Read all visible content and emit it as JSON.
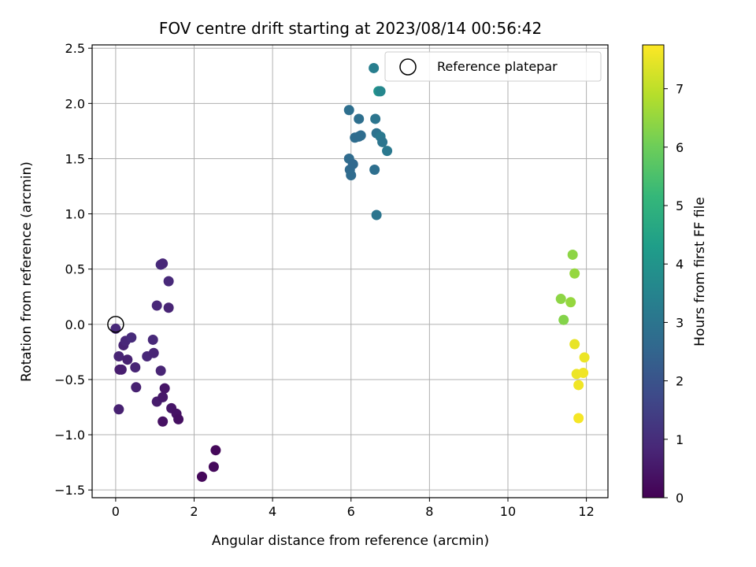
{
  "chart_data": {
    "type": "scatter",
    "title": "FOV centre drift starting at 2023/08/14 00:56:42",
    "xlabel": "Angular distance from reference (arcmin)",
    "ylabel": "Rotation from reference (arcmin)",
    "xlim": [
      -0.6,
      12.55
    ],
    "ylim": [
      -1.57,
      2.53
    ],
    "xticks": [
      0,
      2,
      4,
      6,
      8,
      10,
      12
    ],
    "xtick_labels": [
      "0",
      "2",
      "4",
      "6",
      "8",
      "10",
      "12"
    ],
    "yticks": [
      -1.5,
      -1.0,
      -0.5,
      0.0,
      0.5,
      1.0,
      1.5,
      2.0,
      2.5
    ],
    "ytick_labels": [
      "−1.5",
      "−1.0",
      "−0.5",
      "0.0",
      "0.5",
      "1.0",
      "1.5",
      "2.0",
      "2.5"
    ],
    "grid": true,
    "legend": {
      "position": "top-right",
      "entries": [
        "Reference platepar"
      ]
    },
    "reference_point": {
      "x": 0.0,
      "y": 0.0
    },
    "colorbar": {
      "label": "Hours from first FF file",
      "range": [
        0,
        7.75
      ],
      "ticks": [
        0,
        1,
        2,
        3,
        4,
        5,
        6,
        7
      ],
      "tick_labels": [
        "0",
        "1",
        "2",
        "3",
        "4",
        "5",
        "6",
        "7"
      ],
      "colormap": "viridis",
      "colors": [
        "#440154",
        "#482878",
        "#3e4989",
        "#31688e",
        "#26828e",
        "#1f9e89",
        "#35b779",
        "#6ece58",
        "#b5de2b",
        "#fde725"
      ]
    },
    "points": [
      {
        "x": 0.0,
        "y": -0.04,
        "c": 0.9
      },
      {
        "x": 0.08,
        "y": -0.29,
        "c": 0.8
      },
      {
        "x": 0.1,
        "y": -0.41,
        "c": 0.6
      },
      {
        "x": 0.08,
        "y": -0.77,
        "c": 0.7
      },
      {
        "x": 0.15,
        "y": -0.41,
        "c": 0.65
      },
      {
        "x": 0.2,
        "y": -0.19,
        "c": 0.75
      },
      {
        "x": 0.25,
        "y": -0.15,
        "c": 0.85
      },
      {
        "x": 0.3,
        "y": -0.32,
        "c": 0.7
      },
      {
        "x": 0.4,
        "y": -0.12,
        "c": 0.95
      },
      {
        "x": 0.5,
        "y": -0.39,
        "c": 0.8
      },
      {
        "x": 0.52,
        "y": -0.57,
        "c": 0.7
      },
      {
        "x": 0.8,
        "y": -0.29,
        "c": 0.85
      },
      {
        "x": 0.95,
        "y": -0.14,
        "c": 0.9
      },
      {
        "x": 0.97,
        "y": -0.26,
        "c": 0.8
      },
      {
        "x": 1.05,
        "y": 0.17,
        "c": 0.85
      },
      {
        "x": 1.05,
        "y": -0.7,
        "c": 0.6
      },
      {
        "x": 1.15,
        "y": 0.54,
        "c": 0.95
      },
      {
        "x": 1.2,
        "y": 0.55,
        "c": 0.85
      },
      {
        "x": 1.15,
        "y": -0.42,
        "c": 0.8
      },
      {
        "x": 1.2,
        "y": -0.66,
        "c": 0.5
      },
      {
        "x": 1.25,
        "y": -0.58,
        "c": 0.45
      },
      {
        "x": 1.2,
        "y": -0.88,
        "c": 0.35
      },
      {
        "x": 1.35,
        "y": 0.39,
        "c": 0.9
      },
      {
        "x": 1.35,
        "y": 0.15,
        "c": 0.8
      },
      {
        "x": 1.42,
        "y": -0.76,
        "c": 0.45
      },
      {
        "x": 1.55,
        "y": -0.81,
        "c": 0.4
      },
      {
        "x": 1.6,
        "y": -0.86,
        "c": 0.3
      },
      {
        "x": 2.2,
        "y": -1.38,
        "c": 0.15
      },
      {
        "x": 2.5,
        "y": -1.29,
        "c": 0.2
      },
      {
        "x": 2.55,
        "y": -1.14,
        "c": 0.15
      },
      {
        "x": 5.95,
        "y": 1.94,
        "c": 2.8
      },
      {
        "x": 5.95,
        "y": 1.5,
        "c": 2.7
      },
      {
        "x": 5.97,
        "y": 1.4,
        "c": 2.65
      },
      {
        "x": 6.0,
        "y": 1.35,
        "c": 2.7
      },
      {
        "x": 6.05,
        "y": 1.45,
        "c": 2.6
      },
      {
        "x": 6.1,
        "y": 1.69,
        "c": 2.75
      },
      {
        "x": 6.2,
        "y": 1.86,
        "c": 2.8
      },
      {
        "x": 6.2,
        "y": 1.7,
        "c": 2.7
      },
      {
        "x": 6.25,
        "y": 1.71,
        "c": 2.75
      },
      {
        "x": 6.58,
        "y": 2.32,
        "c": 3.3
      },
      {
        "x": 6.6,
        "y": 1.4,
        "c": 2.8
      },
      {
        "x": 6.62,
        "y": 1.86,
        "c": 3.0
      },
      {
        "x": 6.65,
        "y": 1.73,
        "c": 2.9
      },
      {
        "x": 6.65,
        "y": 0.99,
        "c": 3.0
      },
      {
        "x": 6.7,
        "y": 2.11,
        "c": 4.0
      },
      {
        "x": 6.75,
        "y": 2.11,
        "c": 3.6
      },
      {
        "x": 6.75,
        "y": 1.7,
        "c": 3.1
      },
      {
        "x": 6.8,
        "y": 1.65,
        "c": 3.0
      },
      {
        "x": 6.92,
        "y": 1.57,
        "c": 3.1
      },
      {
        "x": 11.35,
        "y": 0.23,
        "c": 6.4
      },
      {
        "x": 11.42,
        "y": 0.04,
        "c": 6.3
      },
      {
        "x": 11.6,
        "y": 0.2,
        "c": 6.5
      },
      {
        "x": 11.65,
        "y": 0.63,
        "c": 6.4
      },
      {
        "x": 11.7,
        "y": 0.46,
        "c": 6.5
      },
      {
        "x": 11.7,
        "y": -0.18,
        "c": 7.5
      },
      {
        "x": 11.75,
        "y": -0.45,
        "c": 7.55
      },
      {
        "x": 11.8,
        "y": -0.55,
        "c": 7.6
      },
      {
        "x": 11.8,
        "y": -0.85,
        "c": 7.65
      },
      {
        "x": 11.92,
        "y": -0.44,
        "c": 7.6
      },
      {
        "x": 11.95,
        "y": -0.3,
        "c": 7.55
      }
    ]
  }
}
